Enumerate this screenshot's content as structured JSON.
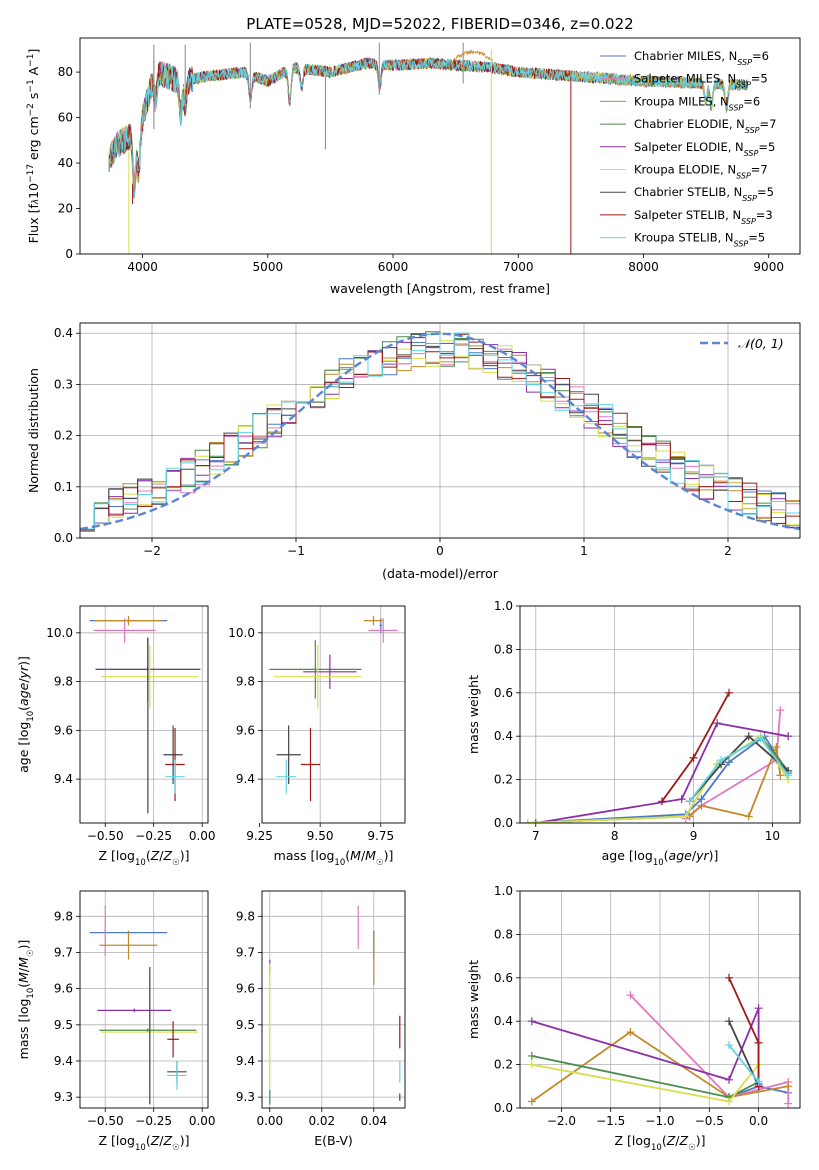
{
  "page_title": "PLATE=0528, MJD=52022, FIBERID=0346, z=0.022",
  "colors": {
    "Chabrier MILES": "#4e79c7",
    "Salpeter MILES": "#e377c2",
    "Kroupa MILES": "#c08a2a",
    "Chabrier ELODIE": "#4c8c4a",
    "Salpeter ELODIE": "#8b2fa8",
    "Kroupa ELODIE": "#d7e04a",
    "Chabrier STELIB": "#444444",
    "Salpeter STELIB": "#a01818",
    "Kroupa STELIB": "#62d3e6",
    "normal_curve": "#5b86d6",
    "grid": "#b0b0b0"
  },
  "chart_data": [
    {
      "id": "spectrum",
      "type": "line",
      "title": "PLATE=0528, MJD=52022, FIBERID=0346, z=0.022",
      "xlabel": "wavelength [Angstrom, rest frame]",
      "ylabel": "Flux [f_λ10^-17 erg cm^-2 s^-1 A^-1]",
      "xlim": [
        3500,
        9250
      ],
      "ylim": [
        0,
        95
      ],
      "xticks": [
        4000,
        5000,
        6000,
        7000,
        8000,
        9000
      ],
      "yticks": [
        0,
        20,
        40,
        60,
        80
      ],
      "grid": false,
      "legend_position": "top-right",
      "legend": [
        "Chabrier MILES, N_SSP=6",
        "Salpeter MILES, N_SSP=5",
        "Kroupa MILES, N_SSP=6",
        "Chabrier ELODIE, N_SSP=7",
        "Salpeter ELODIE, N_SSP=5",
        "Kroupa ELODIE, N_SSP=7",
        "Chabrier STELIB, N_SSP=5",
        "Salpeter STELIB, N_SSP=3",
        "Kroupa STELIB, N_SSP=5"
      ],
      "continuum": {
        "x": [
          3730,
          3800,
          3900,
          4000,
          4100,
          4300,
          4500,
          4800,
          5000,
          5200,
          5500,
          5800,
          6000,
          6300,
          6500,
          6800,
          7000,
          7500,
          8000,
          8500,
          9000
        ],
        "y": [
          42,
          48,
          52,
          60,
          80,
          76,
          78,
          80,
          76,
          82,
          80,
          84,
          83,
          84,
          83,
          82,
          80,
          78,
          76,
          75,
          74
        ]
      },
      "absorption_lines": [
        {
          "x": 3934,
          "depth": 25
        },
        {
          "x": 3969,
          "depth": 20
        },
        {
          "x": 4102,
          "depth": 12
        },
        {
          "x": 4304,
          "depth": 14
        },
        {
          "x": 4341,
          "depth": 10
        },
        {
          "x": 4861,
          "depth": 10
        },
        {
          "x": 5175,
          "depth": 14
        },
        {
          "x": 5270,
          "depth": 8
        },
        {
          "x": 5893,
          "depth": 10
        },
        {
          "x": 8498,
          "depth": 8
        },
        {
          "x": 8542,
          "depth": 10
        },
        {
          "x": 8662,
          "depth": 10
        }
      ],
      "spikes": [
        {
          "x": 4090,
          "ymin": 55,
          "ymax": 85
        },
        {
          "x": 4090,
          "ymin": 70,
          "ymax": 92
        },
        {
          "x": 4340,
          "ymin": 62,
          "ymax": 92
        },
        {
          "x": 4860,
          "ymin": 64,
          "ymax": 93
        },
        {
          "x": 5460,
          "ymin": 46,
          "ymax": 78
        },
        {
          "x": 5890,
          "ymin": 70,
          "ymax": 93
        },
        {
          "x": 6560,
          "ymin": 75,
          "ymax": 93
        },
        {
          "x": 6785,
          "ymin": 0,
          "ymax": 90
        },
        {
          "x": 7420,
          "ymin": 0,
          "ymax": 78
        },
        {
          "x": 3890,
          "ymin": 0,
          "ymax": 45
        },
        {
          "x": 3920,
          "ymin": 22,
          "ymax": 31
        }
      ],
      "kroupa_miles_bump": {
        "x": [
          6500,
          6600,
          6700,
          6790
        ],
        "y": [
          84,
          88,
          89,
          84
        ]
      }
    },
    {
      "id": "residuals",
      "type": "histogram",
      "xlabel": "(data-model)/error",
      "ylabel": "Normed distribution",
      "xlim": [
        -2.5,
        2.5
      ],
      "ylim": [
        0,
        0.42
      ],
      "xticks": [
        -2,
        -1,
        0,
        1,
        2
      ],
      "yticks": [
        0.0,
        0.1,
        0.2,
        0.3,
        0.4
      ],
      "grid": true,
      "legend_position": "top-right",
      "legend": [
        "𝒩(0, 1)"
      ],
      "bin_width": 0.1,
      "series_note": "9 step histograms, one per model, approximately normal with noise",
      "seeds": [
        11,
        23,
        37,
        41,
        53,
        67,
        79,
        83,
        97
      ]
    },
    {
      "id": "age_vs_Z",
      "type": "errorbar",
      "xlabel": "Z [log10(Z/Z☉)]",
      "ylabel": "age  [log10(age/yr)]",
      "xlim": [
        -0.63,
        0.03
      ],
      "ylim": [
        9.22,
        10.11
      ],
      "xticks": [
        -0.5,
        -0.25,
        0.0
      ],
      "xticklabels": [
        "−0.50",
        "−0.25",
        "0.00"
      ],
      "yticks": [
        9.4,
        9.6,
        9.8,
        10.0
      ],
      "grid": true,
      "points": [
        {
          "model": "Chabrier MILES",
          "x": -0.38,
          "xerr": 0.2,
          "y": 10.05,
          "yerr": 0.01
        },
        {
          "model": "Salpeter MILES",
          "x": -0.4,
          "xerr": 0.16,
          "y": 10.01,
          "yerr": 0.05
        },
        {
          "model": "Kroupa MILES",
          "x": -0.38,
          "xerr": 0.17,
          "y": 10.05,
          "yerr": 0.02
        },
        {
          "model": "Chabrier ELODIE",
          "x": -0.28,
          "xerr": 0.27,
          "y": 9.85,
          "yerr": 0.13
        },
        {
          "model": "Salpeter ELODIE",
          "x": -0.28,
          "xerr": 0.27,
          "y": 9.85,
          "yerr": 0.13
        },
        {
          "model": "Kroupa ELODIE",
          "x": -0.27,
          "xerr": 0.25,
          "y": 9.82,
          "yerr": 0.13
        },
        {
          "model": "Chabrier STELIB",
          "x": -0.28,
          "xerr": 0.0,
          "y": 9.62,
          "yerr": 0.36
        },
        {
          "model": "Chabrier STELIB",
          "x": -0.15,
          "xerr": 0.05,
          "y": 9.5,
          "yerr": 0.12
        },
        {
          "model": "Salpeter STELIB",
          "x": -0.14,
          "xerr": 0.05,
          "y": 9.46,
          "yerr": 0.15
        },
        {
          "model": "Kroupa STELIB",
          "x": -0.14,
          "xerr": 0.05,
          "y": 9.41,
          "yerr": 0.07
        }
      ]
    },
    {
      "id": "age_vs_mass",
      "type": "errorbar",
      "xlabel": "mass [log10(M/M☉)]",
      "ylabel": "",
      "xlim": [
        9.26,
        9.85
      ],
      "ylim": [
        9.22,
        10.11
      ],
      "xticks": [
        9.25,
        9.5,
        9.75
      ],
      "xticklabels": [
        "9.25",
        "9.50",
        "9.75"
      ],
      "yticks": [
        9.4,
        9.6,
        9.8,
        10.0
      ],
      "grid": true,
      "points": [
        {
          "model": "Chabrier MILES",
          "x": 9.75,
          "xerr": 0.005,
          "y": 10.03,
          "yerr": 0.03
        },
        {
          "model": "Salpeter MILES",
          "x": 9.76,
          "xerr": 0.06,
          "y": 10.01,
          "yerr": 0.05
        },
        {
          "model": "Kroupa MILES",
          "x": 9.72,
          "xerr": 0.04,
          "y": 10.05,
          "yerr": 0.02
        },
        {
          "model": "Chabrier ELODIE",
          "x": 9.48,
          "xerr": 0.19,
          "y": 9.85,
          "yerr": 0.12
        },
        {
          "model": "Salpeter ELODIE",
          "x": 9.54,
          "xerr": 0.11,
          "y": 9.84,
          "yerr": 0.07
        },
        {
          "model": "Kroupa ELODIE",
          "x": 9.49,
          "xerr": 0.18,
          "y": 9.82,
          "yerr": 0.13
        },
        {
          "model": "Chabrier STELIB",
          "x": 9.37,
          "xerr": 0.05,
          "y": 9.5,
          "yerr": 0.12
        },
        {
          "model": "Salpeter STELIB",
          "x": 9.46,
          "xerr": 0.04,
          "y": 9.46,
          "yerr": 0.15
        },
        {
          "model": "Kroupa STELIB",
          "x": 9.36,
          "xerr": 0.04,
          "y": 9.41,
          "yerr": 0.07
        }
      ]
    },
    {
      "id": "weight_vs_age",
      "type": "line",
      "xlabel": "age  [log10(age/yr)]",
      "ylabel": "mass weight",
      "xlim": [
        6.8,
        10.35
      ],
      "ylim": [
        0,
        1.0
      ],
      "xticks": [
        7,
        8,
        9,
        10
      ],
      "yticks": [
        0.0,
        0.2,
        0.4,
        0.6,
        0.8,
        1.0
      ],
      "grid": true,
      "series": [
        {
          "model": "Chabrier MILES",
          "x": [
            6.9,
            8.9,
            9.1,
            9.45,
            9.9,
            10.2
          ],
          "y": [
            0.0,
            0.04,
            0.11,
            0.28,
            0.4,
            0.23
          ]
        },
        {
          "model": "Salpeter MILES",
          "x": [
            8.9,
            9.1,
            10.05,
            10.1
          ],
          "y": [
            0.02,
            0.08,
            0.29,
            0.52
          ]
        },
        {
          "model": "Kroupa MILES",
          "x": [
            8.95,
            9.1,
            9.7,
            10.05,
            10.1
          ],
          "y": [
            0.03,
            0.08,
            0.03,
            0.35,
            0.22
          ]
        },
        {
          "model": "Chabrier ELODIE",
          "x": [
            6.9,
            8.9,
            9.3,
            9.85,
            10.2
          ],
          "y": [
            0.0,
            0.03,
            0.27,
            0.4,
            0.24
          ]
        },
        {
          "model": "Salpeter ELODIE",
          "x": [
            7.0,
            8.85,
            9.3,
            10.2
          ],
          "y": [
            0.0,
            0.11,
            0.46,
            0.4
          ]
        },
        {
          "model": "Kroupa ELODIE",
          "x": [
            6.9,
            8.9,
            9.3,
            9.85,
            10.2
          ],
          "y": [
            0.0,
            0.03,
            0.27,
            0.4,
            0.2
          ]
        },
        {
          "model": "Chabrier STELIB",
          "x": [
            8.95,
            9.35,
            9.7,
            10.2
          ],
          "y": [
            0.1,
            0.27,
            0.4,
            0.24
          ]
        },
        {
          "model": "Salpeter STELIB",
          "x": [
            8.6,
            9.0,
            9.45
          ],
          "y": [
            0.1,
            0.3,
            0.6
          ]
        },
        {
          "model": "Kroupa STELIB",
          "x": [
            8.95,
            9.35,
            9.85,
            10.2
          ],
          "y": [
            0.1,
            0.29,
            0.39,
            0.22
          ]
        }
      ]
    },
    {
      "id": "mass_vs_Z",
      "type": "errorbar",
      "xlabel": "Z [log10(Z/Z☉)]",
      "ylabel": "mass [log10(M/M☉)]",
      "xlim": [
        -0.63,
        0.03
      ],
      "ylim": [
        9.27,
        9.87
      ],
      "xticks": [
        -0.5,
        -0.25,
        0.0
      ],
      "xticklabels": [
        "−0.50",
        "−0.25",
        "0.00"
      ],
      "yticks": [
        9.3,
        9.4,
        9.5,
        9.6,
        9.7,
        9.8
      ],
      "grid": true,
      "points": [
        {
          "model": "Chabrier MILES",
          "x": -0.38,
          "xerr": 0.2,
          "y": 9.755,
          "yerr": 0.005
        },
        {
          "model": "Salpeter MILES",
          "x": -0.5,
          "xerr": 0.005,
          "y": 9.76,
          "yerr": 0.07
        },
        {
          "model": "Kroupa MILES",
          "x": -0.38,
          "xerr": 0.15,
          "y": 9.72,
          "yerr": 0.04
        },
        {
          "model": "Chabrier ELODIE",
          "x": -0.28,
          "xerr": 0.25,
          "y": 9.485,
          "yerr": 0.005
        },
        {
          "model": "Salpeter ELODIE",
          "x": -0.35,
          "xerr": 0.19,
          "y": 9.54,
          "yerr": 0.005
        },
        {
          "model": "Kroupa ELODIE",
          "x": -0.27,
          "xerr": 0.25,
          "y": 9.48,
          "yerr": 0.17
        },
        {
          "model": "Chabrier STELIB",
          "x": -0.27,
          "xerr": 0.0,
          "y": 9.47,
          "yerr": 0.19
        },
        {
          "model": "Chabrier STELIB",
          "x": -0.13,
          "xerr": 0.05,
          "y": 9.37,
          "yerr": 0.03
        },
        {
          "model": "Salpeter STELIB",
          "x": -0.15,
          "xerr": 0.03,
          "y": 9.46,
          "yerr": 0.05
        },
        {
          "model": "Kroupa STELIB",
          "x": -0.13,
          "xerr": 0.05,
          "y": 9.36,
          "yerr": 0.04
        }
      ]
    },
    {
      "id": "mass_vs_EBV",
      "type": "errorbar",
      "xlabel": "E(B-V)",
      "ylabel": "",
      "xlim": [
        -0.003,
        0.052
      ],
      "ylim": [
        9.27,
        9.87
      ],
      "xticks": [
        0.0,
        0.02,
        0.04
      ],
      "xticklabels": [
        "0.00",
        "0.02",
        "0.04"
      ],
      "yticks": [
        9.3,
        9.4,
        9.5,
        9.6,
        9.7,
        9.8
      ],
      "grid": true,
      "points": [
        {
          "model": "Salpeter MILES",
          "x": 0.034,
          "y": 9.77,
          "yerr": 0.06
        },
        {
          "model": "Chabrier MILES",
          "x": 0.04,
          "y": 9.72,
          "yerr": 0.04
        },
        {
          "model": "Kroupa MILES",
          "x": 0.04,
          "y": 9.68,
          "yerr": 0.07
        },
        {
          "model": "Salpeter ELODIE",
          "x": 0.0,
          "y": 9.66,
          "yerr": 0.02
        },
        {
          "model": "Kroupa ELODIE",
          "x": 0.0,
          "y": 9.5,
          "yerr": 0.17
        },
        {
          "model": "Chabrier ELODIE",
          "x": 0.0,
          "y": 9.3,
          "yerr": 0.02
        },
        {
          "model": "Salpeter STELIB",
          "x": 0.05,
          "y": 9.48,
          "yerr": 0.045
        },
        {
          "model": "Kroupa STELIB",
          "x": 0.05,
          "y": 9.37,
          "yerr": 0.03
        },
        {
          "model": "Chabrier STELIB",
          "x": 0.05,
          "y": 9.3,
          "yerr": 0.01
        }
      ]
    },
    {
      "id": "weight_vs_Z",
      "type": "line",
      "xlabel": "Z [log10(Z/Z☉)]",
      "ylabel": "mass weight",
      "xlim": [
        -2.42,
        0.42
      ],
      "ylim": [
        0,
        1.0
      ],
      "xticks": [
        -2.0,
        -1.5,
        -1.0,
        -0.5,
        0.0
      ],
      "xticklabels": [
        "−2.0",
        "−1.5",
        "−1.0",
        "−0.5",
        "0.0"
      ],
      "yticks": [
        0.0,
        0.2,
        0.4,
        0.6,
        0.8,
        1.0
      ],
      "grid": true,
      "series": [
        {
          "model": "Chabrier MILES",
          "x": [
            -0.3,
            0.0,
            0.3
          ],
          "y": [
            0.05,
            0.1,
            0.07
          ]
        },
        {
          "model": "Salpeter MILES",
          "x": [
            -1.3,
            -0.3,
            0.3,
            0.3
          ],
          "y": [
            0.52,
            0.05,
            0.12,
            0.02
          ]
        },
        {
          "model": "Kroupa MILES",
          "x": [
            -2.3,
            -1.3,
            -0.3,
            0.3
          ],
          "y": [
            0.03,
            0.35,
            0.05,
            0.1
          ]
        },
        {
          "model": "Chabrier ELODIE",
          "x": [
            -2.3,
            -0.3,
            0.0
          ],
          "y": [
            0.24,
            0.05,
            0.12
          ]
        },
        {
          "model": "Salpeter ELODIE",
          "x": [
            -2.3,
            -0.3,
            0.0,
            0.0
          ],
          "y": [
            0.4,
            0.13,
            0.46,
            0.11
          ]
        },
        {
          "model": "Kroupa ELODIE",
          "x": [
            -2.3,
            -0.3,
            0.0
          ],
          "y": [
            0.2,
            0.03,
            0.2
          ]
        },
        {
          "model": "Chabrier STELIB",
          "x": [
            -0.3,
            0.0
          ],
          "y": [
            0.4,
            0.1
          ]
        },
        {
          "model": "Salpeter STELIB",
          "x": [
            -0.3,
            0.0,
            0.0
          ],
          "y": [
            0.6,
            0.3,
            0.1
          ]
        },
        {
          "model": "Kroupa STELIB",
          "x": [
            -0.3,
            0.0
          ],
          "y": [
            0.29,
            0.12
          ]
        }
      ]
    }
  ]
}
